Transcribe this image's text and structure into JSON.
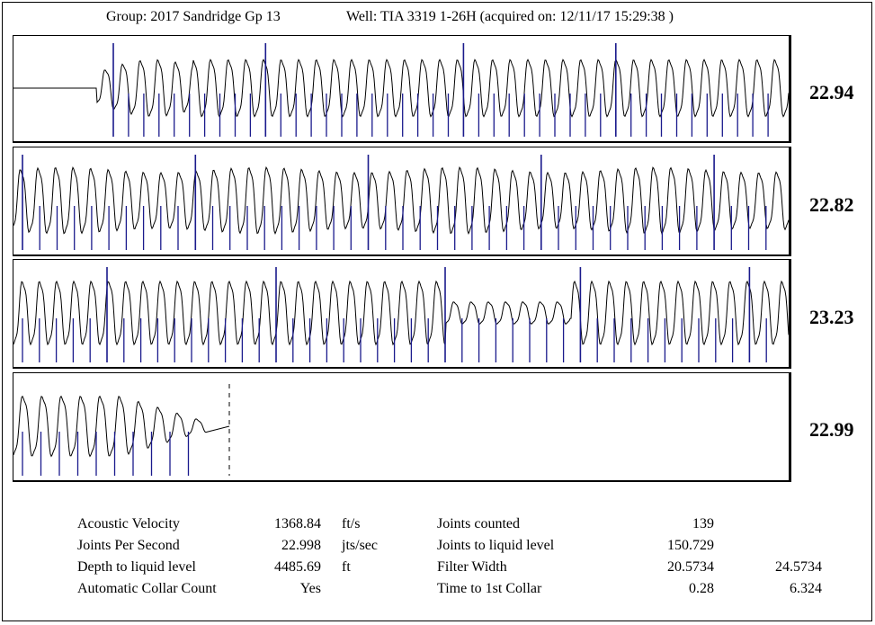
{
  "header": {
    "group": "Group: 2017 Sandridge Gp 13",
    "well": "Well: TIA 3319 1-26H (acquired on: 12/11/17 15:29:38 )"
  },
  "chart_data": {
    "type": "line",
    "title": "",
    "xlabel": "",
    "ylabel": "",
    "grid": false,
    "series": [
      {
        "name": "",
        "rate": "22.94",
        "joints_marked": 44
      },
      {
        "name": "",
        "rate": "22.82",
        "joints_marked": 44
      },
      {
        "name": "",
        "rate": "23.23",
        "joints_marked": 45
      },
      {
        "name": "",
        "rate": "22.99",
        "joints_marked": 10
      }
    ],
    "colors": {
      "trace": "#000000",
      "collar_marker": "#1a1a8c"
    }
  },
  "summary": {
    "rows": [
      {
        "label": "Acoustic Velocity",
        "value": "1368.84",
        "unit": "ft/s",
        "label2": "Joints counted",
        "value2": "139",
        "value3": ""
      },
      {
        "label": "Joints Per Second",
        "value": "22.998",
        "unit": "jts/sec",
        "label2": "Joints to liquid level",
        "value2": "150.729",
        "value3": ""
      },
      {
        "label": "Depth to liquid level",
        "value": "4485.69",
        "unit": "ft",
        "label2": "Filter Width",
        "value2": "20.5734",
        "value3": "24.5734"
      },
      {
        "label": "Automatic Collar Count",
        "value": "Yes",
        "unit": "",
        "label2": "Time to 1st Collar",
        "value2": "0.28",
        "value3": "6.324"
      }
    ]
  }
}
